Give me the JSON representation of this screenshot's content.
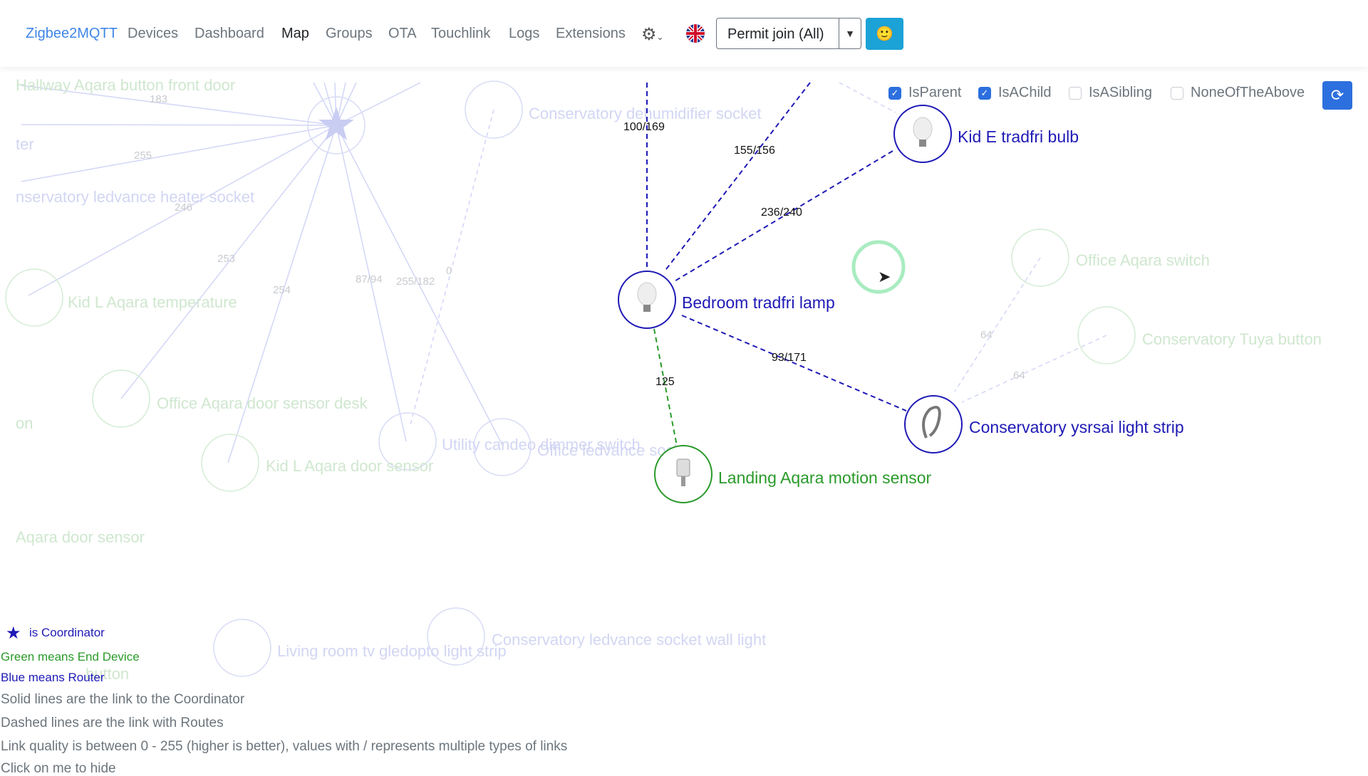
{
  "nav": {
    "brand": "Zigbee2MQTT",
    "items": [
      "Devices",
      "Dashboard",
      "Map",
      "Groups",
      "OTA",
      "Touchlink",
      "Logs",
      "Extensions"
    ],
    "active": "Map",
    "permit_join": "Permit join (All)"
  },
  "filters": [
    {
      "label": "IsParent",
      "checked": true
    },
    {
      "label": "IsAChild",
      "checked": true
    },
    {
      "label": "IsASibling",
      "checked": false
    },
    {
      "label": "NoneOfTheAbove",
      "checked": false
    }
  ],
  "colors": {
    "router": "#1f1ab5",
    "end_device": "#2a9a2a",
    "faded": "#c9d0f2",
    "faded_green": "#cfe8cf",
    "accent": "#2c6fde"
  },
  "map": {
    "faded_nodes": [
      {
        "id": "coord",
        "label": ""
      },
      {
        "id": "hallway",
        "label": "Hallway Aqara button front door"
      },
      {
        "id": "ter",
        "label": "ter"
      },
      {
        "id": "consled",
        "label": "nservatory ledvance heater socket"
      },
      {
        "id": "kidl_temp",
        "label": "Kid L Aqara temperature"
      },
      {
        "id": "office_desk",
        "label": "Office Aqara door sensor desk"
      },
      {
        "id": "on",
        "label": "on"
      },
      {
        "id": "kidl_door",
        "label": "Kid L Aqara door sensor"
      },
      {
        "id": "utility",
        "label": "Utility candeo dimmer switch"
      },
      {
        "id": "office_socket",
        "label": "Office ledvance socket"
      },
      {
        "id": "cons_dehum",
        "label": "Conservatory dehumidifier socket"
      },
      {
        "id": "office_switch",
        "label": "Office Aqara switch"
      },
      {
        "id": "cons_tuya",
        "label": "Conservatory Tuya button"
      },
      {
        "id": "aqara_door",
        "label": "Aqara door sensor"
      },
      {
        "id": "living",
        "label": "Living room tv gledopto light strip"
      },
      {
        "id": "cons_wall",
        "label": "Conservatory ledvance socket wall light"
      },
      {
        "id": "button",
        "label": "button"
      }
    ],
    "faded_link_labels": [
      "183",
      "255",
      "246",
      "253",
      "254",
      "87/94",
      "255/182",
      "0",
      "64",
      "64"
    ],
    "active_nodes": [
      {
        "id": "kide",
        "label": "Kid E tradfri bulb",
        "type": "router"
      },
      {
        "id": "bedroom",
        "label": "Bedroom tradfri lamp",
        "type": "router"
      },
      {
        "id": "consys",
        "label": "Conservatory ysrsai light strip",
        "type": "router"
      },
      {
        "id": "landing",
        "label": "Landing Aqara motion sensor",
        "type": "end_device"
      }
    ],
    "active_links": [
      {
        "label": "100/169",
        "type": "router"
      },
      {
        "label": "155/156",
        "type": "router"
      },
      {
        "label": "236/240",
        "type": "router"
      },
      {
        "label": "93/171",
        "type": "router"
      },
      {
        "label": "125",
        "type": "end_device"
      }
    ]
  },
  "legend": {
    "coordinator": "is Coordinator",
    "green": "Green means End Device",
    "blue": "Blue means Router",
    "solid": "Solid lines are the link to the Coordinator",
    "dashed": "Dashed lines are the link with Routes",
    "quality": "Link quality is between 0 - 255 (higher is better), values with / represents multiple types of links",
    "hide": "Click on me to hide"
  }
}
